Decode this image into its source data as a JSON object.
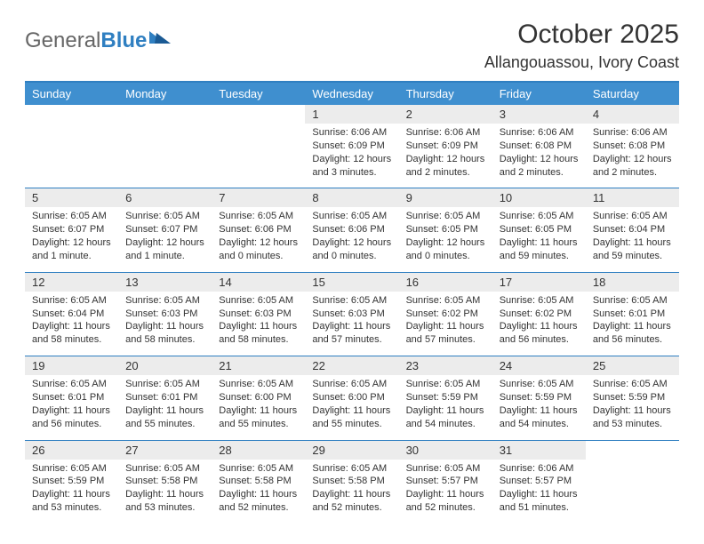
{
  "logo": {
    "general": "General",
    "blue": "Blue"
  },
  "title": "October 2025",
  "location": "Allangouassou, Ivory Coast",
  "colors": {
    "header_bg": "#3f8fcf",
    "border": "#2f7fc1",
    "daynum_bg": "#ececec",
    "text": "#333333"
  },
  "dow": [
    "Sunday",
    "Monday",
    "Tuesday",
    "Wednesday",
    "Thursday",
    "Friday",
    "Saturday"
  ],
  "weeks": [
    [
      null,
      null,
      null,
      {
        "n": "1",
        "sr": "Sunrise: 6:06 AM",
        "ss": "Sunset: 6:09 PM",
        "dl": "Daylight: 12 hours and 3 minutes."
      },
      {
        "n": "2",
        "sr": "Sunrise: 6:06 AM",
        "ss": "Sunset: 6:09 PM",
        "dl": "Daylight: 12 hours and 2 minutes."
      },
      {
        "n": "3",
        "sr": "Sunrise: 6:06 AM",
        "ss": "Sunset: 6:08 PM",
        "dl": "Daylight: 12 hours and 2 minutes."
      },
      {
        "n": "4",
        "sr": "Sunrise: 6:06 AM",
        "ss": "Sunset: 6:08 PM",
        "dl": "Daylight: 12 hours and 2 minutes."
      }
    ],
    [
      {
        "n": "5",
        "sr": "Sunrise: 6:05 AM",
        "ss": "Sunset: 6:07 PM",
        "dl": "Daylight: 12 hours and 1 minute."
      },
      {
        "n": "6",
        "sr": "Sunrise: 6:05 AM",
        "ss": "Sunset: 6:07 PM",
        "dl": "Daylight: 12 hours and 1 minute."
      },
      {
        "n": "7",
        "sr": "Sunrise: 6:05 AM",
        "ss": "Sunset: 6:06 PM",
        "dl": "Daylight: 12 hours and 0 minutes."
      },
      {
        "n": "8",
        "sr": "Sunrise: 6:05 AM",
        "ss": "Sunset: 6:06 PM",
        "dl": "Daylight: 12 hours and 0 minutes."
      },
      {
        "n": "9",
        "sr": "Sunrise: 6:05 AM",
        "ss": "Sunset: 6:05 PM",
        "dl": "Daylight: 12 hours and 0 minutes."
      },
      {
        "n": "10",
        "sr": "Sunrise: 6:05 AM",
        "ss": "Sunset: 6:05 PM",
        "dl": "Daylight: 11 hours and 59 minutes."
      },
      {
        "n": "11",
        "sr": "Sunrise: 6:05 AM",
        "ss": "Sunset: 6:04 PM",
        "dl": "Daylight: 11 hours and 59 minutes."
      }
    ],
    [
      {
        "n": "12",
        "sr": "Sunrise: 6:05 AM",
        "ss": "Sunset: 6:04 PM",
        "dl": "Daylight: 11 hours and 58 minutes."
      },
      {
        "n": "13",
        "sr": "Sunrise: 6:05 AM",
        "ss": "Sunset: 6:03 PM",
        "dl": "Daylight: 11 hours and 58 minutes."
      },
      {
        "n": "14",
        "sr": "Sunrise: 6:05 AM",
        "ss": "Sunset: 6:03 PM",
        "dl": "Daylight: 11 hours and 58 minutes."
      },
      {
        "n": "15",
        "sr": "Sunrise: 6:05 AM",
        "ss": "Sunset: 6:03 PM",
        "dl": "Daylight: 11 hours and 57 minutes."
      },
      {
        "n": "16",
        "sr": "Sunrise: 6:05 AM",
        "ss": "Sunset: 6:02 PM",
        "dl": "Daylight: 11 hours and 57 minutes."
      },
      {
        "n": "17",
        "sr": "Sunrise: 6:05 AM",
        "ss": "Sunset: 6:02 PM",
        "dl": "Daylight: 11 hours and 56 minutes."
      },
      {
        "n": "18",
        "sr": "Sunrise: 6:05 AM",
        "ss": "Sunset: 6:01 PM",
        "dl": "Daylight: 11 hours and 56 minutes."
      }
    ],
    [
      {
        "n": "19",
        "sr": "Sunrise: 6:05 AM",
        "ss": "Sunset: 6:01 PM",
        "dl": "Daylight: 11 hours and 56 minutes."
      },
      {
        "n": "20",
        "sr": "Sunrise: 6:05 AM",
        "ss": "Sunset: 6:01 PM",
        "dl": "Daylight: 11 hours and 55 minutes."
      },
      {
        "n": "21",
        "sr": "Sunrise: 6:05 AM",
        "ss": "Sunset: 6:00 PM",
        "dl": "Daylight: 11 hours and 55 minutes."
      },
      {
        "n": "22",
        "sr": "Sunrise: 6:05 AM",
        "ss": "Sunset: 6:00 PM",
        "dl": "Daylight: 11 hours and 55 minutes."
      },
      {
        "n": "23",
        "sr": "Sunrise: 6:05 AM",
        "ss": "Sunset: 5:59 PM",
        "dl": "Daylight: 11 hours and 54 minutes."
      },
      {
        "n": "24",
        "sr": "Sunrise: 6:05 AM",
        "ss": "Sunset: 5:59 PM",
        "dl": "Daylight: 11 hours and 54 minutes."
      },
      {
        "n": "25",
        "sr": "Sunrise: 6:05 AM",
        "ss": "Sunset: 5:59 PM",
        "dl": "Daylight: 11 hours and 53 minutes."
      }
    ],
    [
      {
        "n": "26",
        "sr": "Sunrise: 6:05 AM",
        "ss": "Sunset: 5:59 PM",
        "dl": "Daylight: 11 hours and 53 minutes."
      },
      {
        "n": "27",
        "sr": "Sunrise: 6:05 AM",
        "ss": "Sunset: 5:58 PM",
        "dl": "Daylight: 11 hours and 53 minutes."
      },
      {
        "n": "28",
        "sr": "Sunrise: 6:05 AM",
        "ss": "Sunset: 5:58 PM",
        "dl": "Daylight: 11 hours and 52 minutes."
      },
      {
        "n": "29",
        "sr": "Sunrise: 6:05 AM",
        "ss": "Sunset: 5:58 PM",
        "dl": "Daylight: 11 hours and 52 minutes."
      },
      {
        "n": "30",
        "sr": "Sunrise: 6:05 AM",
        "ss": "Sunset: 5:57 PM",
        "dl": "Daylight: 11 hours and 52 minutes."
      },
      {
        "n": "31",
        "sr": "Sunrise: 6:06 AM",
        "ss": "Sunset: 5:57 PM",
        "dl": "Daylight: 11 hours and 51 minutes."
      },
      null
    ]
  ]
}
